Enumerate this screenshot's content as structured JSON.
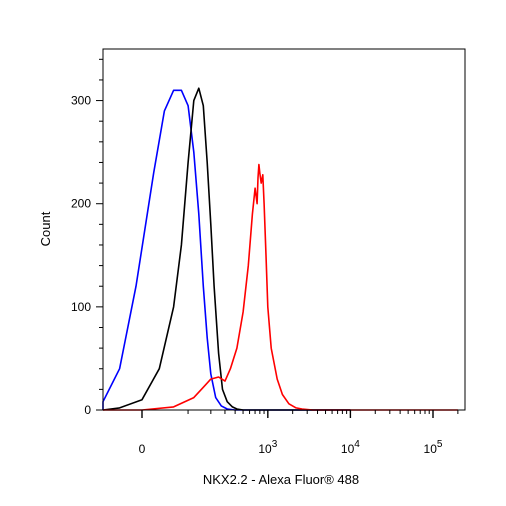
{
  "chart_data": {
    "type": "line",
    "title": "",
    "xlabel": "NKX2.2 - Alexa Fluor® 488",
    "ylabel": "Count",
    "x_scale": "biexponential",
    "xlim": [
      -400,
      200000
    ],
    "ylim": [
      0,
      350
    ],
    "grid": false,
    "x_ticks": [
      {
        "value": 0,
        "label": "0",
        "exp": ""
      },
      {
        "value": 1000,
        "label": "10",
        "exp": "3"
      },
      {
        "value": 10000,
        "label": "10",
        "exp": "4"
      },
      {
        "value": 100000,
        "label": "10",
        "exp": "5"
      }
    ],
    "y_ticks": [
      {
        "value": 0,
        "label": "0"
      },
      {
        "value": 100,
        "label": "100"
      },
      {
        "value": 200,
        "label": "200"
      },
      {
        "value": 300,
        "label": "300"
      }
    ],
    "series": [
      {
        "color": "#0000ff",
        "x": [
          -300,
          -150,
          -80,
          -40,
          -10,
          20,
          40,
          60,
          80,
          100,
          120,
          140,
          160,
          180,
          200,
          230,
          270,
          320,
          400,
          600,
          1000,
          10000
        ],
        "y": [
          0,
          1,
          8,
          40,
          120,
          230,
          290,
          310,
          310,
          295,
          250,
          190,
          120,
          70,
          35,
          12,
          4,
          1,
          0,
          0,
          0,
          0
        ]
      },
      {
        "color": "#000000",
        "x": [
          -300,
          -100,
          -40,
          0,
          30,
          60,
          80,
          100,
          120,
          140,
          160,
          180,
          200,
          220,
          250,
          280,
          320,
          370,
          420,
          500,
          700,
          1000,
          10000
        ],
        "y": [
          0,
          0,
          2,
          10,
          40,
          100,
          160,
          240,
          300,
          312,
          295,
          240,
          180,
          120,
          55,
          20,
          8,
          3,
          1,
          0,
          0,
          0,
          0
        ]
      },
      {
        "color": "#ff0000",
        "x": [
          -300,
          0,
          60,
          120,
          160,
          200,
          250,
          300,
          350,
          420,
          500,
          580,
          650,
          700,
          740,
          760,
          780,
          800,
          830,
          870,
          900,
          950,
          1000,
          1100,
          1300,
          1500,
          1800,
          2200,
          2600,
          3500,
          10000,
          200000
        ],
        "y": [
          0,
          0,
          3,
          12,
          22,
          30,
          32,
          28,
          40,
          60,
          95,
          140,
          190,
          215,
          200,
          225,
          238,
          230,
          220,
          228,
          200,
          150,
          100,
          60,
          30,
          15,
          6,
          2,
          1,
          0,
          0,
          0
        ]
      }
    ]
  }
}
